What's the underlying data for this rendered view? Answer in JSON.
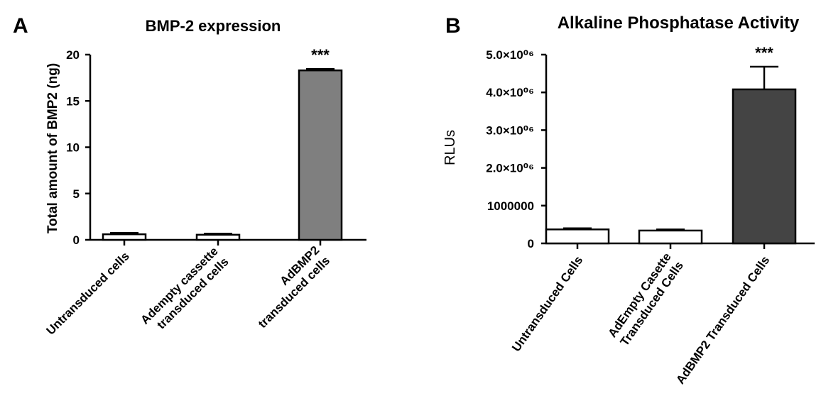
{
  "figure": {
    "panels": [
      {
        "letter": "A",
        "title": "BMP-2 expression"
      },
      {
        "letter": "B",
        "title": "Alkaline Phosphatase  Activity"
      }
    ]
  },
  "chart_data": [
    {
      "type": "bar",
      "title": "BMP-2 expression",
      "panel": "A",
      "ylabel": "Total amount of BMP2 (ng)",
      "xlabel": "",
      "ylim": [
        0,
        20
      ],
      "yticks": [
        0,
        5,
        10,
        15,
        20
      ],
      "ytick_labels": [
        "0",
        "5",
        "10",
        "15",
        "20"
      ],
      "categories": [
        [
          "Untransduced cells"
        ],
        [
          "Adempty cassette",
          "transduced cells"
        ],
        [
          "AdBMP2",
          "transduced cells"
        ]
      ],
      "values": [
        0.6,
        0.55,
        18.3
      ],
      "errors": [
        0.15,
        0.12,
        0.15
      ],
      "bar_colors": [
        "#ffffff",
        "#ffffff",
        "#7f7f7f"
      ],
      "annotations": [
        "",
        "",
        "***"
      ],
      "grid": false
    },
    {
      "type": "bar",
      "title": "Alkaline Phosphatase  Activity",
      "panel": "B",
      "ylabel": "RLUs",
      "xlabel": "",
      "ylim": [
        0,
        5000000
      ],
      "yticks": [
        0,
        1000000,
        2000000,
        3000000,
        4000000,
        5000000
      ],
      "ytick_labels": [
        "0",
        "1000000",
        "2.0×10⁰⁶",
        "3.0×10⁰⁶",
        "4.0×10⁰⁶",
        "5.0×10⁰⁶"
      ],
      "categories": [
        [
          "Untransduced Cells"
        ],
        [
          "AdEmpty Casette",
          "Transduced Cells"
        ],
        [
          "AdBMP2 Transduced Cells"
        ]
      ],
      "values": [
        370000,
        340000,
        4080000
      ],
      "errors": [
        30000,
        30000,
        600000
      ],
      "bar_colors": [
        "#ffffff",
        "#ffffff",
        "#444444"
      ],
      "annotations": [
        "",
        "",
        "***"
      ],
      "grid": false
    }
  ]
}
